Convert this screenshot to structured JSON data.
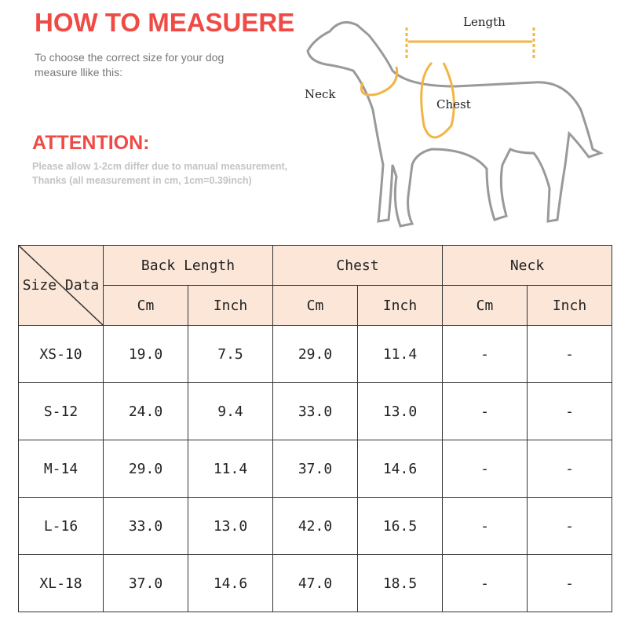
{
  "header": {
    "title": "HOW TO MEASUERE",
    "subtitle": "To choose the correct size for your dog measure llike this:",
    "attention": "ATTENTION:",
    "note_line1": "Please allow 1-2cm differ due to manual measurement,",
    "note_line2": "Thanks (all measurement in cm, 1cm=0.39inch)"
  },
  "diagram": {
    "length": "Length",
    "neck": "Neck",
    "chest": "Chest"
  },
  "colors": {
    "accent": "#f04a45",
    "header_bg": "#fbe6d8",
    "arrow": "#f2b544"
  },
  "table": {
    "corner": "Size Data",
    "groups": [
      "Back Length",
      "Chest",
      "Neck"
    ],
    "units": [
      "Cm",
      "Inch",
      "Cm",
      "Inch",
      "Cm",
      "Inch"
    ],
    "rows": [
      {
        "size": "XS-10",
        "values": [
          "19.0",
          "7.5",
          "29.0",
          "11.4",
          "-",
          "-"
        ]
      },
      {
        "size": "S-12",
        "values": [
          "24.0",
          "9.4",
          "33.0",
          "13.0",
          "-",
          "-"
        ]
      },
      {
        "size": "M-14",
        "values": [
          "29.0",
          "11.4",
          "37.0",
          "14.6",
          "-",
          "-"
        ]
      },
      {
        "size": "L-16",
        "values": [
          "33.0",
          "13.0",
          "42.0",
          "16.5",
          "-",
          "-"
        ]
      },
      {
        "size": "XL-18",
        "values": [
          "37.0",
          "14.6",
          "47.0",
          "18.5",
          "-",
          "-"
        ]
      }
    ]
  }
}
